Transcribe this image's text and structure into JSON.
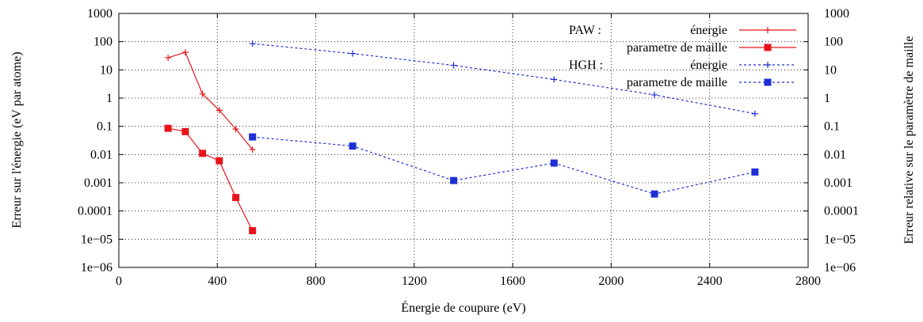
{
  "chart_data": {
    "type": "line",
    "title": "",
    "xlabel": "Énergie de coupure (eV)",
    "ylabel": "Erreur sur l'énergie (eV par atome)",
    "y2label": "Erreur relative sur le paramètre de maille",
    "xlim": [
      0,
      2800
    ],
    "ylim": [
      1e-06,
      1000
    ],
    "yscale": "log",
    "grid": true,
    "legend_position": "top-right",
    "x_ticks": [
      0,
      400,
      800,
      1200,
      1600,
      2000,
      2400,
      2800
    ],
    "x_tick_labels": [
      "0",
      "400",
      "800",
      "1200",
      "1600",
      "2000",
      "2400",
      "2800"
    ],
    "y_ticks": [
      1000,
      100,
      10,
      1,
      0.1,
      0.01,
      0.001,
      0.0001,
      1e-05,
      1e-06
    ],
    "y_tick_labels": [
      "1000",
      "100",
      "10",
      "1",
      "0.1",
      "0.01",
      "0.001",
      "0.0001",
      "1e−05",
      "1e−06"
    ],
    "legend_groups": [
      {
        "title": "PAW :",
        "entries": [
          "énergie",
          "parametre de maille"
        ]
      },
      {
        "title": "HGH :",
        "entries": [
          "énergie",
          "parametre de maille"
        ]
      }
    ],
    "series": [
      {
        "group": "PAW :",
        "name": "énergie",
        "color": "#e8141b",
        "style": "solid",
        "marker": "plus",
        "x": [
          200,
          270,
          340,
          408,
          475,
          543
        ],
        "y": [
          27,
          42,
          1.4,
          0.37,
          0.08,
          0.015
        ]
      },
      {
        "group": "PAW :",
        "name": "parametre de maille",
        "color": "#e8141b",
        "style": "solid",
        "marker": "square",
        "x": [
          200,
          270,
          340,
          408,
          475,
          543
        ],
        "y": [
          0.085,
          0.065,
          0.011,
          0.006,
          0.0003,
          2e-05
        ]
      },
      {
        "group": "HGH :",
        "name": "énergie",
        "color": "#1f2fd6",
        "style": "dashed",
        "marker": "plus",
        "x": [
          543,
          950,
          1360,
          1768,
          2176,
          2584
        ],
        "y": [
          85,
          38,
          14.5,
          4.6,
          1.3,
          0.28
        ]
      },
      {
        "group": "HGH :",
        "name": "parametre de maille",
        "color": "#1f2fd6",
        "style": "dashed",
        "marker": "square",
        "x": [
          543,
          950,
          1360,
          1768,
          2176,
          2584
        ],
        "y": [
          0.042,
          0.02,
          0.0012,
          0.005,
          0.0004,
          0.0024
        ]
      }
    ]
  }
}
